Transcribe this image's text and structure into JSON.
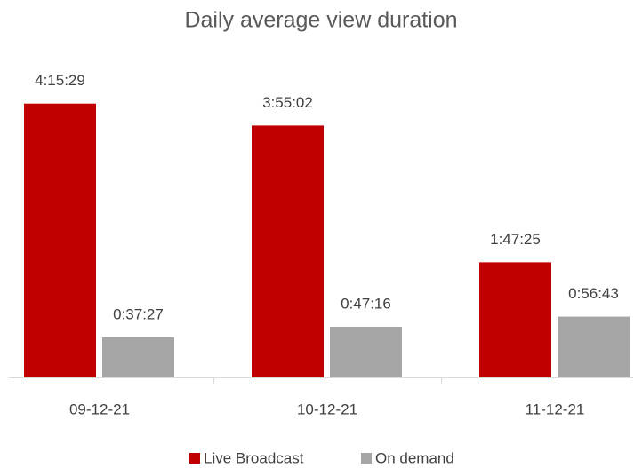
{
  "chart_data": {
    "type": "bar",
    "title": "Daily average view duration",
    "categories": [
      "09-12-21",
      "10-12-21",
      "11-12-21"
    ],
    "series": [
      {
        "name": "Live Broadcast",
        "color": "#c00000",
        "values": [
          15329,
          14102,
          6445
        ],
        "value_labels": [
          "4:15:29",
          "3:55:02",
          "1:47:25"
        ]
      },
      {
        "name": "On demand",
        "color": "#a5a5a5",
        "values": [
          2247,
          2836,
          3403
        ],
        "value_labels": [
          "0:37:27",
          "0:47:16",
          "0:56:43"
        ]
      }
    ],
    "ylim": [
      0,
      18000
    ],
    "legend": "bottom"
  }
}
